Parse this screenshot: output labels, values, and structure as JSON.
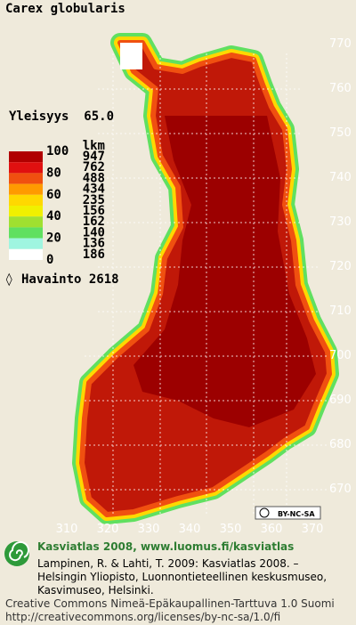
{
  "title": "Carex globularis",
  "frequency": "Yleisyys  65.0",
  "legend": {
    "scale_labels": [
      "100",
      "80",
      "60",
      "40",
      "20",
      "0"
    ],
    "count_header": "lkm",
    "counts": [
      "947",
      "762",
      "488",
      "434",
      "235",
      "156",
      "162",
      "140",
      "136",
      "186"
    ],
    "colors": [
      "#b00000",
      "#e01010",
      "#f05010",
      "#ff9a00",
      "#ffd800",
      "#f0f000",
      "#a0e030",
      "#60e060",
      "#9ff5e0",
      "#ffffff"
    ]
  },
  "observations": "Havainto 2618",
  "y_labels": [
    "770",
    "760",
    "750",
    "740",
    "730",
    "720",
    "710",
    "700",
    "690",
    "680",
    "670"
  ],
  "x_labels": [
    "310",
    "320",
    "330",
    "340",
    "350",
    "360",
    "370"
  ],
  "license_badge": "BY-NC-SA",
  "footer": {
    "site": "Kasviatlas 2008, www.luomus.fi/kasviatlas",
    "citation": [
      "Lampinen, R. & Lahti, T. 2009: Kasviatlas 2008. –",
      "Helsingin Yliopisto, Luonnontieteellinen keskusmuseo,",
      "Kasvimuseo, Helsinki."
    ],
    "license": [
      "Creative Commons Nimeä-Epäkaupallinen-Tarttuva 1.0 Suomi",
      "http://creativecommons.org/licenses/by-nc-sa/1.0/fi"
    ]
  }
}
